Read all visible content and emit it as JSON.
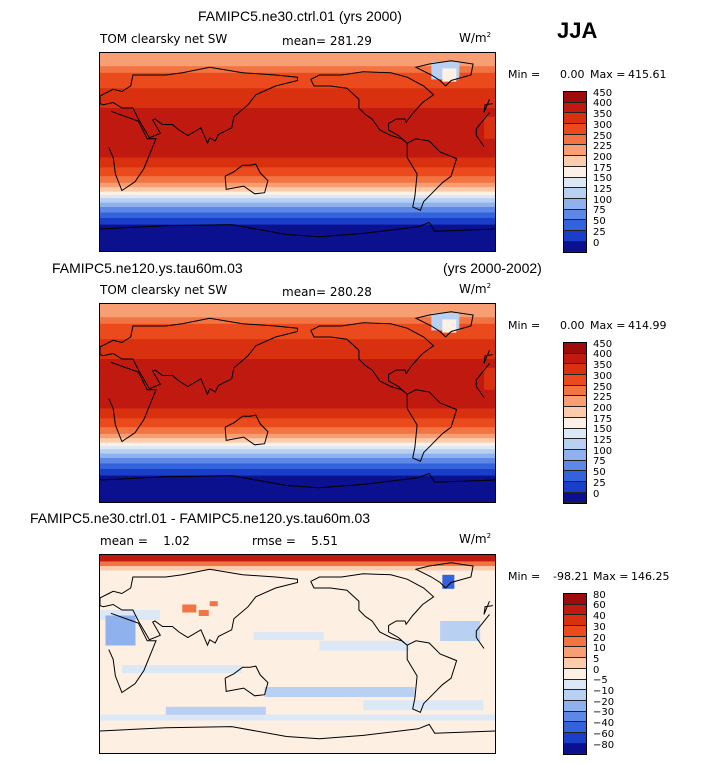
{
  "season": "JJA",
  "units_base": "W/m",
  "units_exp": "2",
  "panels": [
    {
      "title": "FAMIPC5.ne30.ctrl.01 (yrs 2000)",
      "variable": "TOM clearsky net SW",
      "stat": "mean= 281.29",
      "min_label": "Min =",
      "min_value": "0.00",
      "max_label": "Max =",
      "max_value": "415.61"
    },
    {
      "title": "FAMIPC5.ne120.ys.tau60m.03",
      "years": "(yrs 2000-2002)",
      "variable": "TOM clearsky net SW",
      "stat": "mean= 280.28",
      "min_label": "Min =",
      "min_value": "0.00",
      "max_label": "Max =",
      "max_value": "414.99"
    },
    {
      "title": "FAMIPC5.ne30.ctrl.01 - FAMIPC5.ne120.ys.tau60m.03",
      "stat": "mean =    1.02",
      "stat2": "rmse =    5.51",
      "min_label": "Min =",
      "min_value": "-98.21",
      "max_label": "Max =",
      "max_value": "146.25"
    }
  ],
  "chart_data": [
    {
      "type": "heatmap",
      "title": "FAMIPC5.ne30.ctrl.01 (yrs 2000)",
      "field": "TOM clearsky net SW",
      "season": "JJA",
      "mean": 281.29,
      "min": 0.0,
      "max": 415.61,
      "colorbar_levels": [
        "450",
        "400",
        "350",
        "300",
        "250",
        "225",
        "200",
        "175",
        "150",
        "125",
        "100",
        "75",
        "50",
        "25",
        "0"
      ],
      "colorbar_colors": [
        "#9e0b0b",
        "#c01a10",
        "#d9300f",
        "#ea4a1c",
        "#f37443",
        "#f89e73",
        "#fbcbac",
        "#fdf0e4",
        "#dde8f7",
        "#b8d0f1",
        "#8fb2ee",
        "#5d88e6",
        "#3363dc",
        "#1a3ec8",
        "#0a108e"
      ]
    },
    {
      "type": "heatmap",
      "title": "FAMIPC5.ne120.ys.tau60m.03 (yrs 2000-2002)",
      "field": "TOM clearsky net SW",
      "season": "JJA",
      "mean": 280.28,
      "min": 0.0,
      "max": 414.99,
      "colorbar_levels": [
        "450",
        "400",
        "350",
        "300",
        "250",
        "225",
        "200",
        "175",
        "150",
        "125",
        "100",
        "75",
        "50",
        "25",
        "0"
      ],
      "colorbar_colors": [
        "#9e0b0b",
        "#c01a10",
        "#d9300f",
        "#ea4a1c",
        "#f37443",
        "#f89e73",
        "#fbcbac",
        "#fdf0e4",
        "#dde8f7",
        "#b8d0f1",
        "#8fb2ee",
        "#5d88e6",
        "#3363dc",
        "#1a3ec8",
        "#0a108e"
      ]
    },
    {
      "type": "heatmap",
      "title": "FAMIPC5.ne30.ctrl.01 - FAMIPC5.ne120.ys.tau60m.03",
      "season": "JJA",
      "mean": 1.02,
      "rmse": 5.51,
      "min": -98.21,
      "max": 146.25,
      "colorbar_levels": [
        "80",
        "60",
        "40",
        "30",
        "20",
        "10",
        "5",
        "0",
        "−5",
        "−10",
        "−20",
        "−30",
        "−40",
        "−60",
        "−80"
      ],
      "colorbar_colors": [
        "#9e0b0b",
        "#c01a10",
        "#d9300f",
        "#ea4a1c",
        "#f37443",
        "#f89e73",
        "#fbcbac",
        "#fdefe2",
        "#dde8f7",
        "#b8d0f1",
        "#8fb2ee",
        "#5d88e6",
        "#3363dc",
        "#1a3ec8",
        "#0a108e"
      ]
    }
  ]
}
